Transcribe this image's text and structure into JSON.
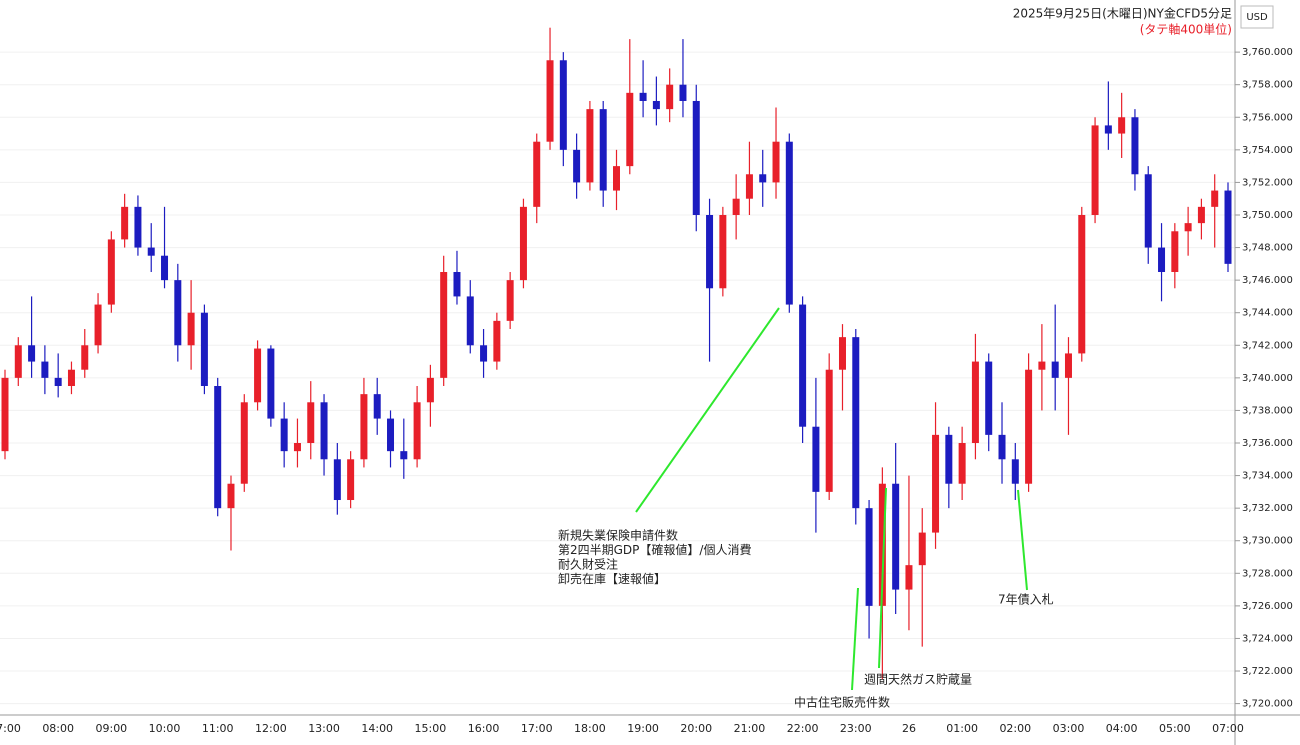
{
  "chart_data": {
    "type": "candlestick",
    "title": "2025年9月25日(木曜日)NY金CFD5分足",
    "subtitle": "(タテ軸400単位)",
    "currency": "USD",
    "up_color": "#e8202a",
    "down_color": "#1c1cc0",
    "categories": [
      "07:00",
      null,
      null,
      null,
      "08:00",
      null,
      null,
      null,
      "09:00",
      null,
      null,
      null,
      "10:00",
      null,
      null,
      null,
      "11:00",
      null,
      null,
      null,
      "12:00",
      null,
      null,
      null,
      "13:00",
      null,
      null,
      null,
      "14:00",
      null,
      null,
      null,
      "15:00",
      null,
      null,
      null,
      "16:00",
      null,
      null,
      null,
      "17:00",
      null,
      null,
      null,
      "18:00",
      null,
      null,
      null,
      "19:00",
      null,
      null,
      null,
      "20:00",
      null,
      null,
      null,
      "21:00",
      null,
      null,
      null,
      "22:00",
      null,
      null,
      null,
      "23:00",
      null,
      null,
      null,
      "26",
      null,
      null,
      null,
      "01:00",
      null,
      null,
      null,
      "02:00",
      null,
      null,
      null,
      "03:00",
      null,
      null,
      null,
      "04:00",
      null,
      null,
      null,
      "05:00",
      null,
      null,
      null,
      "07:00"
    ],
    "open": [
      3735.5,
      3740,
      3742,
      3741,
      3740,
      3739.5,
      3740.5,
      3742,
      3744.5,
      3748.5,
      3750.5,
      3748,
      3747.5,
      3746,
      3742,
      3744,
      3739.5,
      3732,
      3733.5,
      3738.5,
      3741.8,
      3737.5,
      3735.5,
      3736,
      3738.5,
      3735,
      3732.5,
      3735,
      3739,
      3737.5,
      3735.5,
      3735,
      3738.5,
      3740,
      3746.5,
      3745,
      3742,
      3741,
      3743.5,
      3746,
      3750.5,
      3754.5,
      3759.5,
      3754,
      3752,
      3756.5,
      3751.5,
      3753,
      3757.5,
      3757,
      3756.5,
      3758,
      3757,
      3750,
      3745.5,
      3750,
      3751,
      3752.5,
      3752,
      3754.5,
      3744.5,
      3737,
      3733,
      3740.5,
      3742.5,
      3732,
      3726,
      3733.5,
      3727,
      3728.5,
      3730.5,
      3736.5,
      3733.5,
      3736,
      3741,
      3736.5,
      3735,
      3733.5,
      3740.5,
      3741,
      3740,
      3741.5,
      3750,
      3755.5,
      3755,
      3756,
      3752.5,
      3748,
      3746.5,
      3749,
      3749.5,
      3750.5,
      3751.5
    ],
    "high": [
      3740.5,
      3742.5,
      3745,
      3742,
      3741.5,
      3741,
      3743,
      3745.2,
      3749,
      3751.3,
      3751.2,
      3749.5,
      3750.5,
      3747,
      3746,
      3744.5,
      3740,
      3734,
      3739,
      3742.3,
      3742,
      3738.5,
      3737.5,
      3739.8,
      3739,
      3736,
      3735.5,
      3740,
      3740,
      3738,
      3737.5,
      3739.5,
      3740.8,
      3747.5,
      3747.8,
      3746,
      3743,
      3744,
      3746.5,
      3751,
      3755,
      3761.5,
      3760,
      3755,
      3757,
      3757,
      3754,
      3760.8,
      3759.5,
      3758.5,
      3759,
      3760.8,
      3758,
      3751,
      3750.5,
      3752.5,
      3754.5,
      3754,
      3756.6,
      3755,
      3745,
      3740,
      3741.5,
      3743.3,
      3743,
      3732.5,
      3734.5,
      3736,
      3734,
      3732,
      3738.5,
      3737,
      3737,
      3742.7,
      3741.5,
      3738.5,
      3736,
      3741.5,
      3743.3,
      3744.5,
      3742.5,
      3750.5,
      3756,
      3758.2,
      3757.5,
      3756.5,
      3753,
      3749.5,
      3749.5,
      3750.5,
      3751,
      3752.5,
      3752
    ],
    "low": [
      3735,
      3739.5,
      3740,
      3739,
      3738.8,
      3739,
      3740,
      3741.5,
      3744,
      3748,
      3747.5,
      3746.5,
      3745.5,
      3741,
      3740.5,
      3739,
      3731.5,
      3729.4,
      3733,
      3738,
      3737,
      3734.5,
      3734.5,
      3735,
      3734,
      3731.6,
      3732,
      3734.5,
      3736.5,
      3734.5,
      3733.8,
      3734.5,
      3737,
      3739.5,
      3744.5,
      3741.5,
      3740,
      3740.5,
      3743,
      3745.5,
      3749.5,
      3754,
      3753,
      3751,
      3751.5,
      3750.5,
      3750.3,
      3752.5,
      3756,
      3755.5,
      3755.7,
      3756,
      3749,
      3741,
      3745,
      3748.5,
      3750,
      3750.5,
      3751,
      3744,
      3736,
      3730.5,
      3732.5,
      3738,
      3731,
      3724,
      3721.5,
      3725.5,
      3724.5,
      3723.5,
      3729.5,
      3732,
      3732.5,
      3735,
      3735.5,
      3733.5,
      3732.5,
      3733,
      3738,
      3738,
      3736.5,
      3741,
      3749.5,
      3754,
      3753.5,
      3751.5,
      3747,
      3744.7,
      3745.5,
      3747.5,
      3748.5,
      3748,
      3746.5
    ],
    "close": [
      3740,
      3742,
      3741,
      3740,
      3739.5,
      3740.5,
      3742,
      3744.5,
      3748.5,
      3750.5,
      3748,
      3747.5,
      3746,
      3742,
      3744,
      3739.5,
      3732,
      3733.5,
      3738.5,
      3741.8,
      3737.5,
      3735.5,
      3736,
      3738.5,
      3735,
      3732.5,
      3735,
      3739,
      3737.5,
      3735.5,
      3735,
      3738.5,
      3740,
      3746.5,
      3745,
      3742,
      3741,
      3743.5,
      3746,
      3750.5,
      3754.5,
      3759.5,
      3754,
      3752,
      3756.5,
      3751.5,
      3753,
      3757.5,
      3757,
      3756.5,
      3758,
      3757,
      3750,
      3745.5,
      3750,
      3751,
      3752.5,
      3752,
      3754.5,
      3744.5,
      3737,
      3733,
      3740.5,
      3742.5,
      3732,
      3726,
      3733.5,
      3727,
      3728.5,
      3730.5,
      3736.5,
      3733.5,
      3736,
      3741,
      3736.5,
      3735,
      3733.5,
      3740.5,
      3741,
      3740,
      3741.5,
      3750,
      3755.5,
      3755,
      3756,
      3752.5,
      3748,
      3746.5,
      3749,
      3749.5,
      3750.5,
      3751.5,
      3747
    ],
    "ylim": [
      3719.3,
      3763.2
    ],
    "yticks": [
      {
        "value": 3720,
        "label": "3,720.000"
      },
      {
        "value": 3722,
        "label": "3,722.000"
      },
      {
        "value": 3724,
        "label": "3,724.000"
      },
      {
        "value": 3726,
        "label": "3,726.000"
      },
      {
        "value": 3728,
        "label": "3,728.000"
      },
      {
        "value": 3730,
        "label": "3,730.000"
      },
      {
        "value": 3732,
        "label": "3,732.000"
      },
      {
        "value": 3734,
        "label": "3,734.000"
      },
      {
        "value": 3736,
        "label": "3,736.000"
      },
      {
        "value": 3738,
        "label": "3,738.000"
      },
      {
        "value": 3740,
        "label": "3,740.000"
      },
      {
        "value": 3742,
        "label": "3,742.000"
      },
      {
        "value": 3744,
        "label": "3,744.000"
      },
      {
        "value": 3746,
        "label": "3,746.000"
      },
      {
        "value": 3748,
        "label": "3,748.000"
      },
      {
        "value": 3750,
        "label": "3,750.000"
      },
      {
        "value": 3752,
        "label": "3,752.000"
      },
      {
        "value": 3754,
        "label": "3,754.000"
      },
      {
        "value": 3756,
        "label": "3,756.000"
      },
      {
        "value": 3758,
        "label": "3,758.000"
      },
      {
        "value": 3760,
        "label": "3,760.000"
      }
    ],
    "grid": true,
    "annotations": [
      {
        "lines": [
          "新規失業保険申請件数",
          "第2四半期GDP【確報値】/個人消費",
          "耐久財受注",
          "卸売在庫【速報値】"
        ]
      },
      {
        "lines": [
          "中古住宅販売件数"
        ]
      },
      {
        "lines": [
          "週間天然ガス貯蔵量"
        ]
      },
      {
        "lines": [
          "7年債入札"
        ]
      }
    ]
  }
}
